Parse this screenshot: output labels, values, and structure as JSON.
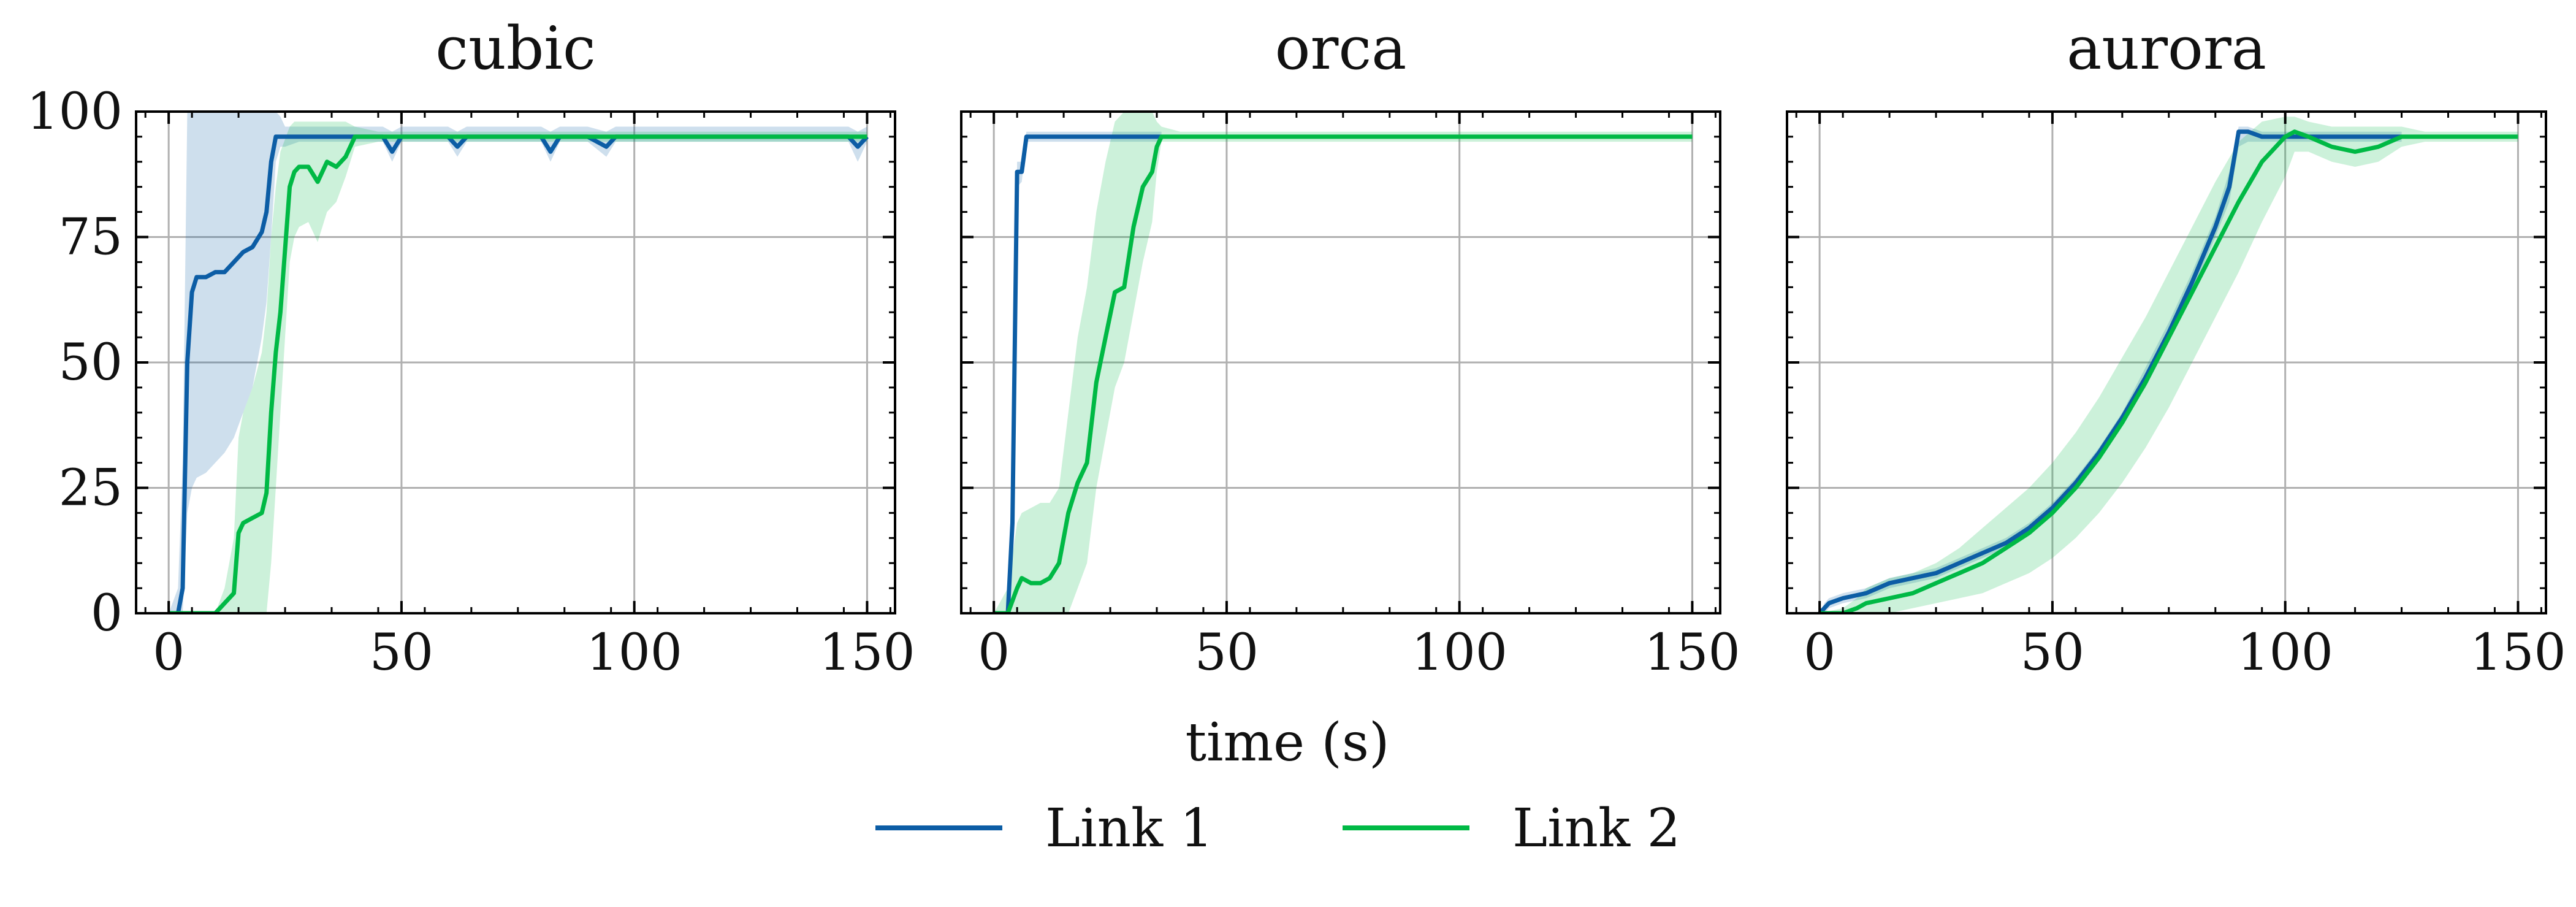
{
  "chart_data": {
    "type": "line",
    "xlabel": "time (s)",
    "ylabel": "",
    "xlim": [
      -7,
      156
    ],
    "ylim": [
      0,
      100
    ],
    "xticks": [
      "0",
      "50",
      "100",
      "150"
    ],
    "yticks": [
      "0",
      "25",
      "50",
      "75",
      "100"
    ],
    "grid": true,
    "legend_position": "bottom-center",
    "legend": [
      {
        "name": "Link 1",
        "color": "#0C5DA5"
      },
      {
        "name": "Link 2",
        "color": "#00B945"
      }
    ],
    "panels": [
      {
        "title": "cubic",
        "series": [
          {
            "name": "Link 1",
            "color": "#0C5DA5",
            "x": [
              0,
              2,
              3,
              4,
              5,
              6,
              8,
              10,
              12,
              14,
              16,
              18,
              20,
              21,
              22,
              23,
              24,
              25,
              28,
              32,
              36,
              40,
              44,
              46,
              48,
              50,
              60,
              62,
              64,
              70,
              80,
              82,
              84,
              90,
              94,
              96,
              100,
              110,
              120,
              130,
              140,
              146,
              148,
              150
            ],
            "y": [
              0,
              0,
              5,
              50,
              64,
              67,
              67,
              68,
              68,
              70,
              72,
              73,
              76,
              80,
              90,
              95,
              95,
              95,
              95,
              95,
              95,
              95,
              95,
              95,
              92,
              95,
              95,
              93,
              95,
              95,
              95,
              92,
              95,
              95,
              93,
              95,
              95,
              95,
              95,
              95,
              95,
              95,
              93,
              95
            ],
            "band_low": [
              0,
              0,
              0,
              20,
              25,
              27,
              28,
              30,
              32,
              35,
              40,
              45,
              55,
              62,
              75,
              90,
              93,
              93,
              94,
              94,
              94,
              94,
              94,
              94,
              90,
              94,
              94,
              91,
              94,
              94,
              94,
              90,
              94,
              94,
              91,
              94,
              94,
              94,
              94,
              94,
              94,
              94,
              90,
              94
            ],
            "band_high": [
              0,
              5,
              30,
              100,
              100,
              100,
              100,
              100,
              100,
              100,
              100,
              100,
              100,
              100,
              100,
              100,
              99,
              97,
              97,
              97,
              97,
              97,
              97,
              97,
              96,
              97,
              97,
              96,
              97,
              97,
              97,
              96,
              97,
              97,
              96,
              97,
              97,
              97,
              97,
              97,
              97,
              97,
              96,
              97
            ]
          },
          {
            "name": "Link 2",
            "color": "#00B945",
            "x": [
              0,
              5,
              10,
              12,
              14,
              15,
              16,
              18,
              20,
              21,
              22,
              23,
              24,
              26,
              27,
              28,
              30,
              32,
              34,
              36,
              38,
              40,
              45,
              50,
              60,
              80,
              100,
              120,
              140,
              150
            ],
            "y": [
              0,
              0,
              0,
              2,
              4,
              16,
              18,
              19,
              20,
              24,
              40,
              52,
              60,
              85,
              88,
              89,
              89,
              86,
              90,
              89,
              91,
              95,
              95,
              95,
              95,
              95,
              95,
              95,
              95,
              95
            ],
            "band_low": [
              0,
              0,
              0,
              0,
              0,
              0,
              0,
              0,
              0,
              0,
              10,
              25,
              40,
              70,
              75,
              77,
              78,
              74,
              80,
              82,
              87,
              93,
              94,
              94,
              94,
              94,
              94,
              94,
              94,
              94
            ],
            "band_high": [
              0,
              0,
              0,
              5,
              15,
              35,
              40,
              45,
              52,
              60,
              75,
              85,
              92,
              97,
              98,
              98,
              98,
              98,
              98,
              98,
              98,
              97,
              96,
              96,
              96,
              96,
              96,
              96,
              96,
              96
            ]
          }
        ]
      },
      {
        "title": "orca",
        "series": [
          {
            "name": "Link 1",
            "color": "#0C5DA5",
            "x": [
              0,
              3,
              4,
              5,
              6,
              7,
              8,
              10,
              20,
              30,
              36
            ],
            "y": [
              0,
              0,
              18,
              88,
              88,
              95,
              95,
              95,
              95,
              95,
              95
            ],
            "band_low": [
              0,
              0,
              15,
              85,
              86,
              94,
              94,
              94,
              94,
              94,
              94
            ],
            "band_high": [
              0,
              0,
              20,
              90,
              90,
              96,
              96,
              96,
              96,
              96,
              96
            ]
          },
          {
            "name": "Link 2",
            "color": "#00B945",
            "x": [
              0,
              3,
              5,
              6,
              8,
              10,
              12,
              14,
              16,
              18,
              20,
              22,
              24,
              26,
              28,
              30,
              32,
              34,
              35,
              36,
              40,
              60,
              80,
              100,
              120,
              140,
              150
            ],
            "y": [
              0,
              0,
              5,
              7,
              6,
              6,
              7,
              10,
              20,
              26,
              30,
              46,
              55,
              64,
              65,
              77,
              85,
              88,
              93,
              95,
              95,
              95,
              95,
              95,
              95,
              95,
              95
            ],
            "band_low": [
              0,
              0,
              0,
              0,
              0,
              0,
              0,
              0,
              0,
              5,
              10,
              25,
              35,
              45,
              50,
              60,
              70,
              78,
              88,
              94,
              94,
              94,
              94,
              94,
              94,
              94,
              94
            ],
            "band_high": [
              0,
              5,
              18,
              20,
              21,
              22,
              22,
              25,
              40,
              55,
              65,
              80,
              90,
              98,
              100,
              100,
              100,
              100,
              98,
              97,
              96,
              96,
              96,
              96,
              96,
              96,
              96
            ]
          }
        ]
      },
      {
        "title": "aurora",
        "series": [
          {
            "name": "Link 1",
            "color": "#0C5DA5",
            "x": [
              0,
              1,
              2,
              5,
              10,
              15,
              20,
              25,
              30,
              35,
              40,
              45,
              50,
              55,
              60,
              65,
              70,
              75,
              80,
              85,
              88,
              90,
              92,
              95,
              100,
              110,
              120,
              125
            ],
            "y": [
              0,
              1,
              2,
              3,
              4,
              6,
              7,
              8,
              10,
              12,
              14,
              17,
              21,
              26,
              32,
              39,
              47,
              56,
              66,
              77,
              85,
              96,
              96,
              95,
              95,
              95,
              95,
              95
            ],
            "band_low": [
              0,
              0,
              1,
              2,
              3,
              5,
              6,
              7,
              9,
              11,
              13,
              16,
              20,
              25,
              31,
              38,
              45,
              54,
              64,
              75,
              82,
              93,
              94,
              94,
              94,
              94,
              94,
              94
            ],
            "band_high": [
              0,
              2,
              3,
              4,
              5,
              7,
              8,
              9,
              11,
              13,
              15,
              18,
              22,
              27,
              33,
              40,
              49,
              58,
              68,
              79,
              88,
              97,
              97,
              96,
              96,
              96,
              96,
              96
            ]
          },
          {
            "name": "Link 2",
            "color": "#00B945",
            "x": [
              0,
              5,
              8,
              10,
              15,
              20,
              25,
              30,
              35,
              40,
              45,
              50,
              55,
              60,
              65,
              70,
              75,
              80,
              85,
              90,
              95,
              100,
              102,
              105,
              110,
              115,
              120,
              125,
              130,
              140,
              150
            ],
            "y": [
              0,
              0,
              1,
              2,
              3,
              4,
              6,
              8,
              10,
              13,
              16,
              20,
              25,
              31,
              38,
              46,
              55,
              64,
              73,
              82,
              90,
              95,
              96,
              95,
              93,
              92,
              93,
              95,
              95,
              95,
              95
            ],
            "band_low": [
              0,
              0,
              0,
              0,
              0,
              1,
              2,
              3,
              4,
              6,
              8,
              11,
              15,
              20,
              26,
              33,
              41,
              50,
              59,
              68,
              78,
              87,
              92,
              92,
              90,
              89,
              90,
              93,
              94,
              94,
              94
            ],
            "band_high": [
              0,
              1,
              3,
              5,
              7,
              8,
              10,
              13,
              17,
              21,
              25,
              30,
              36,
              43,
              51,
              59,
              68,
              77,
              86,
              94,
              98,
              99,
              99,
              98,
              97,
              97,
              97,
              97,
              96,
              96,
              96
            ]
          }
        ]
      }
    ]
  }
}
